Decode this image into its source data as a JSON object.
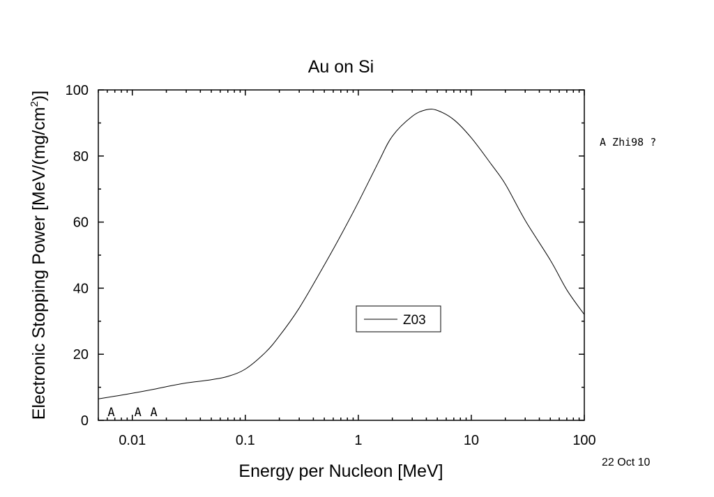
{
  "chart_data": {
    "type": "line",
    "title": "Au on Si",
    "xlabel": "Energy per Nucleon [MeV]",
    "ylabel_main": "Electronic Stopping Power [MeV/(mg/cm",
    "ylabel_sup": "2",
    "ylabel_end": ")]",
    "x_scale": "log",
    "xlim": [
      0.005,
      100
    ],
    "ylim": [
      0,
      100
    ],
    "x_ticks": [
      {
        "value": 0.01,
        "label": "0.01"
      },
      {
        "value": 0.1,
        "label": "0.1"
      },
      {
        "value": 1,
        "label": "1"
      },
      {
        "value": 10,
        "label": "10"
      },
      {
        "value": 100,
        "label": "100"
      }
    ],
    "y_ticks": [
      {
        "value": 0,
        "label": "0"
      },
      {
        "value": 20,
        "label": "20"
      },
      {
        "value": 40,
        "label": "40"
      },
      {
        "value": 60,
        "label": "60"
      },
      {
        "value": 80,
        "label": "80"
      },
      {
        "value": 100,
        "label": "100"
      }
    ],
    "series": [
      {
        "name": "Z03",
        "color": "#000000",
        "points": [
          [
            0.005,
            6.5
          ],
          [
            0.007,
            7.3
          ],
          [
            0.01,
            8.2
          ],
          [
            0.015,
            9.3
          ],
          [
            0.02,
            10.2
          ],
          [
            0.03,
            11.3
          ],
          [
            0.05,
            12.3
          ],
          [
            0.07,
            13.3
          ],
          [
            0.1,
            15.5
          ],
          [
            0.15,
            20.5
          ],
          [
            0.2,
            25.5
          ],
          [
            0.3,
            34.0
          ],
          [
            0.5,
            47.0
          ],
          [
            0.7,
            56.0
          ],
          [
            1.0,
            66.0
          ],
          [
            1.5,
            78.0
          ],
          [
            2.0,
            86.0
          ],
          [
            3.0,
            92.0
          ],
          [
            4.0,
            94.0
          ],
          [
            5.0,
            93.8
          ],
          [
            7.0,
            91.0
          ],
          [
            10.0,
            85.5
          ],
          [
            15.0,
            77.5
          ],
          [
            20.0,
            71.5
          ],
          [
            30.0,
            60.5
          ],
          [
            50.0,
            48.5
          ],
          [
            70.0,
            39.5
          ],
          [
            100.0,
            32.0
          ]
        ]
      }
    ],
    "data_markers": [
      {
        "symbol": "A",
        "x": 0.0065,
        "y": 2.5
      },
      {
        "symbol": "A",
        "x": 0.0112,
        "y": 2.5
      },
      {
        "symbol": "A",
        "x": 0.0155,
        "y": 2.5
      }
    ],
    "side_legend": "A Zhi98 ?",
    "legend_position": "center-right",
    "date_stamp": "22 Oct 10"
  }
}
